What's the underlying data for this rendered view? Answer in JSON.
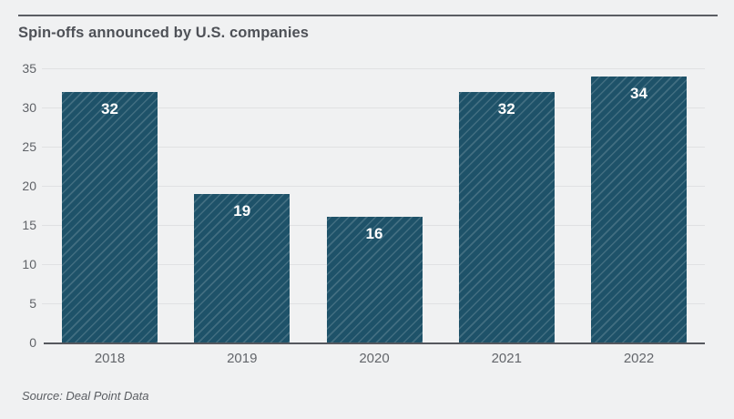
{
  "header": {
    "title": "Spin-offs announced by U.S. companies"
  },
  "footer": {
    "source": "Source: Deal Point Data"
  },
  "colors": {
    "background": "#f0f1f2",
    "bar_fill": "#1e5269",
    "bar_hatch": "rgba(255,255,255,0.16)",
    "value_label": "#ffffff",
    "axis_text": "#63666b",
    "baseline": "#55585e",
    "gridline": "#e0e1e3",
    "title_text": "#4e5157"
  },
  "chart_data": {
    "type": "bar",
    "title": "Spin-offs announced by U.S. companies",
    "categories": [
      "2018",
      "2019",
      "2020",
      "2021",
      "2022"
    ],
    "values": [
      32,
      19,
      16,
      32,
      34
    ],
    "xlabel": "",
    "ylabel": "",
    "ylim": [
      0,
      35
    ],
    "yticks": [
      0,
      5,
      10,
      15,
      20,
      25,
      30,
      35
    ],
    "grid": true,
    "legend": "none",
    "bar_style": "diagonal-hatch",
    "value_labels": "inside-top",
    "source": "Source: Deal Point Data"
  }
}
